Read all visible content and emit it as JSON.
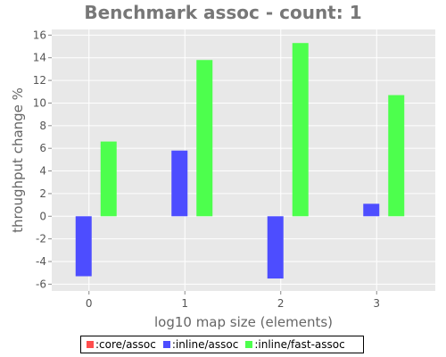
{
  "chart_data": {
    "type": "bar",
    "title": "Benchmark assoc - count: 1",
    "xlabel": "log10 map size (elements)",
    "ylabel": "throughput change %",
    "categories": [
      "0",
      "1",
      "2",
      "3"
    ],
    "ylim": [
      -6.6,
      16.5
    ],
    "yticks": [
      "-6",
      "-4",
      "-2",
      "0",
      "2",
      "4",
      "6",
      "8",
      "10",
      "12",
      "14",
      "16"
    ],
    "grid": true,
    "legend_position": "bottom",
    "series": [
      {
        "name": ":core/assoc",
        "color": "#ff4d4d",
        "values": [
          0,
          0,
          0,
          0
        ]
      },
      {
        "name": ":inline/assoc",
        "color": "#4d4dff",
        "values": [
          -5.3,
          5.8,
          -5.5,
          1.1
        ]
      },
      {
        "name": ":inline/fast-assoc",
        "color": "#4dff4d",
        "values": [
          6.6,
          13.8,
          15.3,
          10.7
        ]
      }
    ]
  }
}
